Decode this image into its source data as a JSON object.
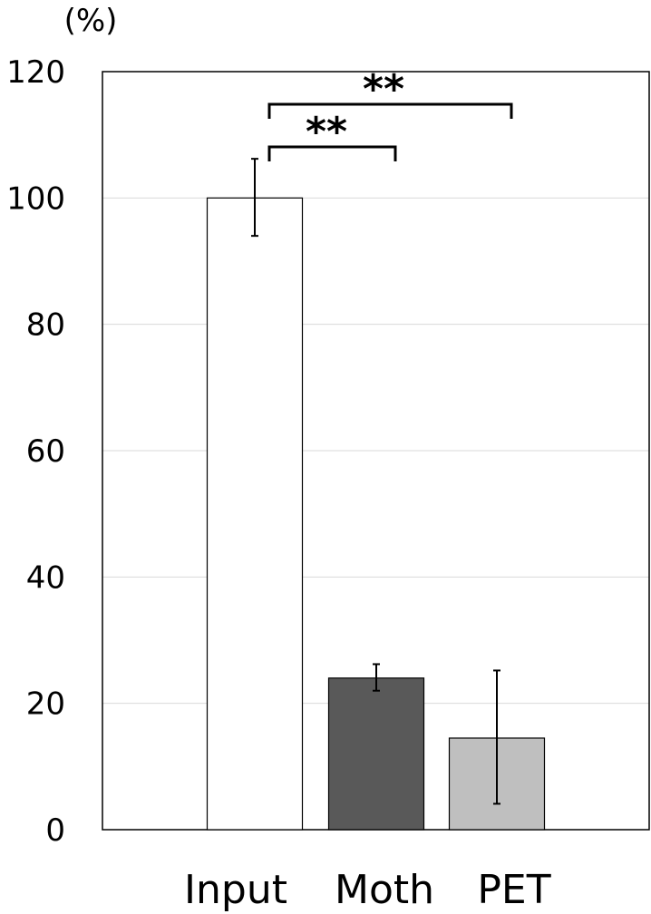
{
  "chart_data": {
    "type": "bar",
    "ylabel": "(%)",
    "ylim": [
      0,
      120
    ],
    "yticks": [
      0,
      20,
      40,
      60,
      80,
      100,
      120
    ],
    "grid": true,
    "categories": [
      "Input",
      "Moth",
      "PET"
    ],
    "values": [
      100,
      24,
      14.5
    ],
    "errors": [
      {
        "low": 94,
        "high": 106.2
      },
      {
        "low": 22,
        "high": 26.2
      },
      {
        "low": 4.1,
        "high": 25.2
      }
    ],
    "colors": [
      "#ffffff",
      "#595959",
      "#bfbfbf"
    ],
    "significance": [
      {
        "from": "Input",
        "to": "Moth",
        "label": "**"
      },
      {
        "from": "Input",
        "to": "PET",
        "label": "**"
      }
    ]
  }
}
